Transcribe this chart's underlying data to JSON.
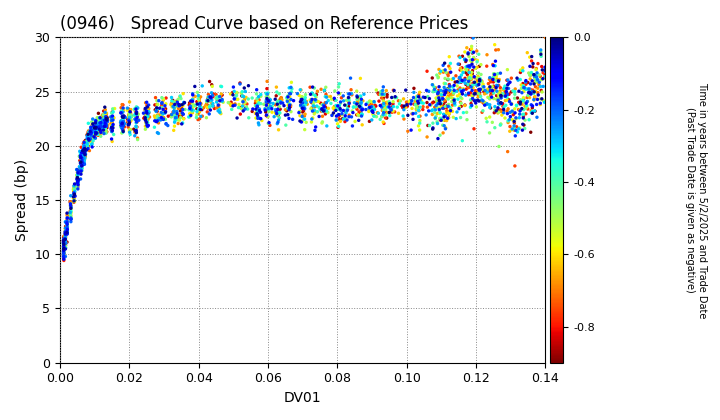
{
  "title": "(0946)   Spread Curve based on Reference Prices",
  "xlabel": "DV01",
  "ylabel": "Spread (bp)",
  "xlim": [
    0.0,
    0.14
  ],
  "ylim": [
    0,
    30
  ],
  "xticks": [
    0.0,
    0.02,
    0.04,
    0.06,
    0.08,
    0.1,
    0.12,
    0.14
  ],
  "yticks": [
    0,
    5,
    10,
    15,
    20,
    25,
    30
  ],
  "colorbar_label": "Time in years between 5/2/2025 and Trade Date\n(Past Trade Date is given as negative)",
  "cmap": "jet_r",
  "vmin": -0.9,
  "vmax": 0.0,
  "colorbar_ticks": [
    0.0,
    -0.2,
    -0.4,
    -0.6,
    -0.8
  ],
  "marker_size": 6,
  "background_color": "#ffffff",
  "grid_color": "#aaaaaa",
  "title_fontsize": 12,
  "axis_fontsize": 10
}
